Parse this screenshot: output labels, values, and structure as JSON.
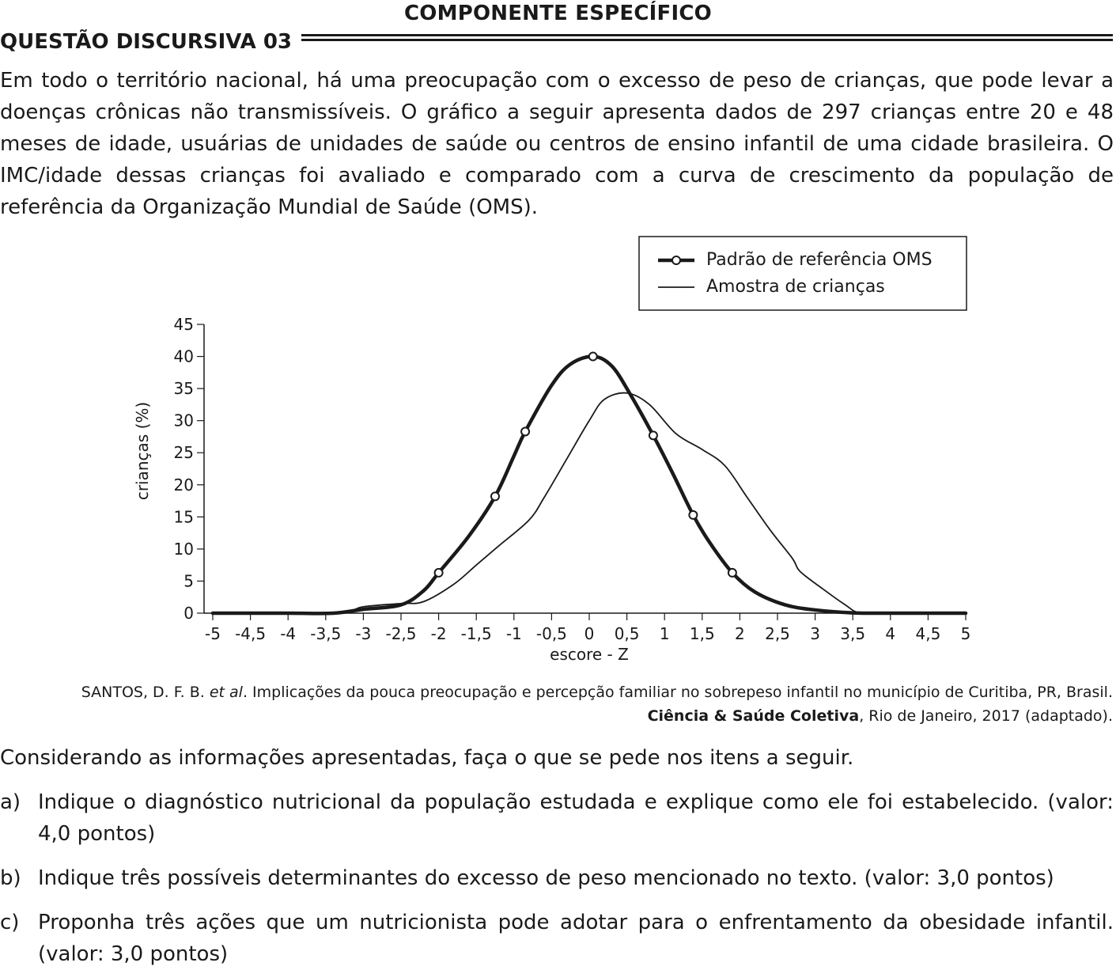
{
  "header": {
    "section_title": "COMPONENTE ESPECÍFICO",
    "question_title": "QUESTÃO DISCURSIVA 03"
  },
  "intro": "Em todo o território nacional, há uma preocupação com o excesso de peso de crianças, que pode levar a doenças crônicas não transmissíveis. O gráfico a seguir apresenta dados de 297 crianças entre 20 e 48 meses de idade, usuárias de unidades de saúde ou centros de ensino infantil de uma cidade brasileira. O IMC/idade dessas crianças foi avaliado e comparado com a curva de crescimento da população de referência da Organização Mundial de Saúde (OMS).",
  "chart_data": {
    "type": "line",
    "xlabel": "escore - Z",
    "ylabel": "crianças (%)",
    "xlim": [
      -5,
      5
    ],
    "ylim": [
      0,
      45
    ],
    "xticks": [
      "-5",
      "-4,5",
      "-4",
      "-3,5",
      "-3",
      "-2,5",
      "-2",
      "-1,5",
      "-1",
      "-0,5",
      "0",
      "0,5",
      "1",
      "1,5",
      "2",
      "2,5",
      "3",
      "3,5",
      "4",
      "4,5",
      "5"
    ],
    "yticks": [
      "0",
      "5",
      "10",
      "15",
      "20",
      "25",
      "30",
      "35",
      "40",
      "45"
    ],
    "legend_position": "top-right",
    "series": [
      {
        "name": "Padrão de referência OMS",
        "style": "thick-with-circle-markers",
        "color": "#1a1a1a",
        "points": [
          [
            -5,
            0
          ],
          [
            -4,
            0
          ],
          [
            -3.4,
            0
          ],
          [
            -3,
            0.6
          ],
          [
            -2.5,
            1.3
          ],
          [
            -2.2,
            3.5
          ],
          [
            -2,
            6.3
          ],
          [
            -1.6,
            12
          ],
          [
            -1.25,
            18.2
          ],
          [
            -1,
            24.5
          ],
          [
            -0.85,
            28.3
          ],
          [
            -0.5,
            35.5
          ],
          [
            -0.25,
            38.8
          ],
          [
            0.05,
            40
          ],
          [
            0.3,
            38.5
          ],
          [
            0.55,
            34
          ],
          [
            0.85,
            27.7
          ],
          [
            1.1,
            22
          ],
          [
            1.38,
            15.3
          ],
          [
            1.6,
            11
          ],
          [
            1.9,
            6.3
          ],
          [
            2.2,
            3.3
          ],
          [
            2.6,
            1.3
          ],
          [
            3,
            0.5
          ],
          [
            3.5,
            0.05
          ],
          [
            4,
            0
          ],
          [
            4.5,
            0
          ],
          [
            5,
            0
          ]
        ],
        "markers": [
          [
            -2,
            6.3
          ],
          [
            -1.25,
            18.2
          ],
          [
            -0.85,
            28.3
          ],
          [
            0.05,
            40
          ],
          [
            0.85,
            27.7
          ],
          [
            1.38,
            15.3
          ],
          [
            1.9,
            6.3
          ]
        ]
      },
      {
        "name": "Amostra de crianças",
        "style": "thin",
        "color": "#1a1a1a",
        "points": [
          [
            -5,
            0
          ],
          [
            -3.4,
            0
          ],
          [
            -3,
            1
          ],
          [
            -2.5,
            1.5
          ],
          [
            -2.2,
            1.8
          ],
          [
            -1.8,
            4.5
          ],
          [
            -1.5,
            7.5
          ],
          [
            -1.2,
            10.5
          ],
          [
            -0.8,
            14.5
          ],
          [
            -0.6,
            18
          ],
          [
            -0.3,
            24
          ],
          [
            0,
            30
          ],
          [
            0.2,
            33.3
          ],
          [
            0.5,
            34.3
          ],
          [
            0.8,
            32.5
          ],
          [
            1.15,
            28
          ],
          [
            1.5,
            25.5
          ],
          [
            1.8,
            23
          ],
          [
            2.1,
            18
          ],
          [
            2.4,
            13
          ],
          [
            2.7,
            8.5
          ],
          [
            2.8,
            6.5
          ],
          [
            3.1,
            3.8
          ],
          [
            3.4,
            1.3
          ],
          [
            3.6,
            0
          ],
          [
            4,
            0
          ],
          [
            5,
            0
          ]
        ]
      }
    ]
  },
  "source": {
    "line1_prefix": "SANTOS, D. F. B. ",
    "line1_italic": "et al",
    "line1_suffix": ". Implicações da pouca preocupação e percepção familiar no sobrepeso infantil no município de Curitiba, PR, Brasil.",
    "line2_bold": "Ciência & Saúde Coletiva",
    "line2_suffix": ", Rio de Janeiro, 2017 (adaptado)."
  },
  "prompt": "Considerando as informações apresentadas, faça o que se pede nos itens a seguir.",
  "items": [
    {
      "marker": "a)",
      "text": "Indique o diagnóstico nutricional da população estudada e explique como ele foi estabelecido. (valor: 4,0 pontos)"
    },
    {
      "marker": "b)",
      "text": "Indique três possíveis determinantes do excesso de peso mencionado no texto. (valor: 3,0 pontos)"
    },
    {
      "marker": "c)",
      "text": "Proponha três ações que um nutricionista pode adotar para o enfrentamento da obesidade infantil. (valor: 3,0 pontos)"
    }
  ]
}
